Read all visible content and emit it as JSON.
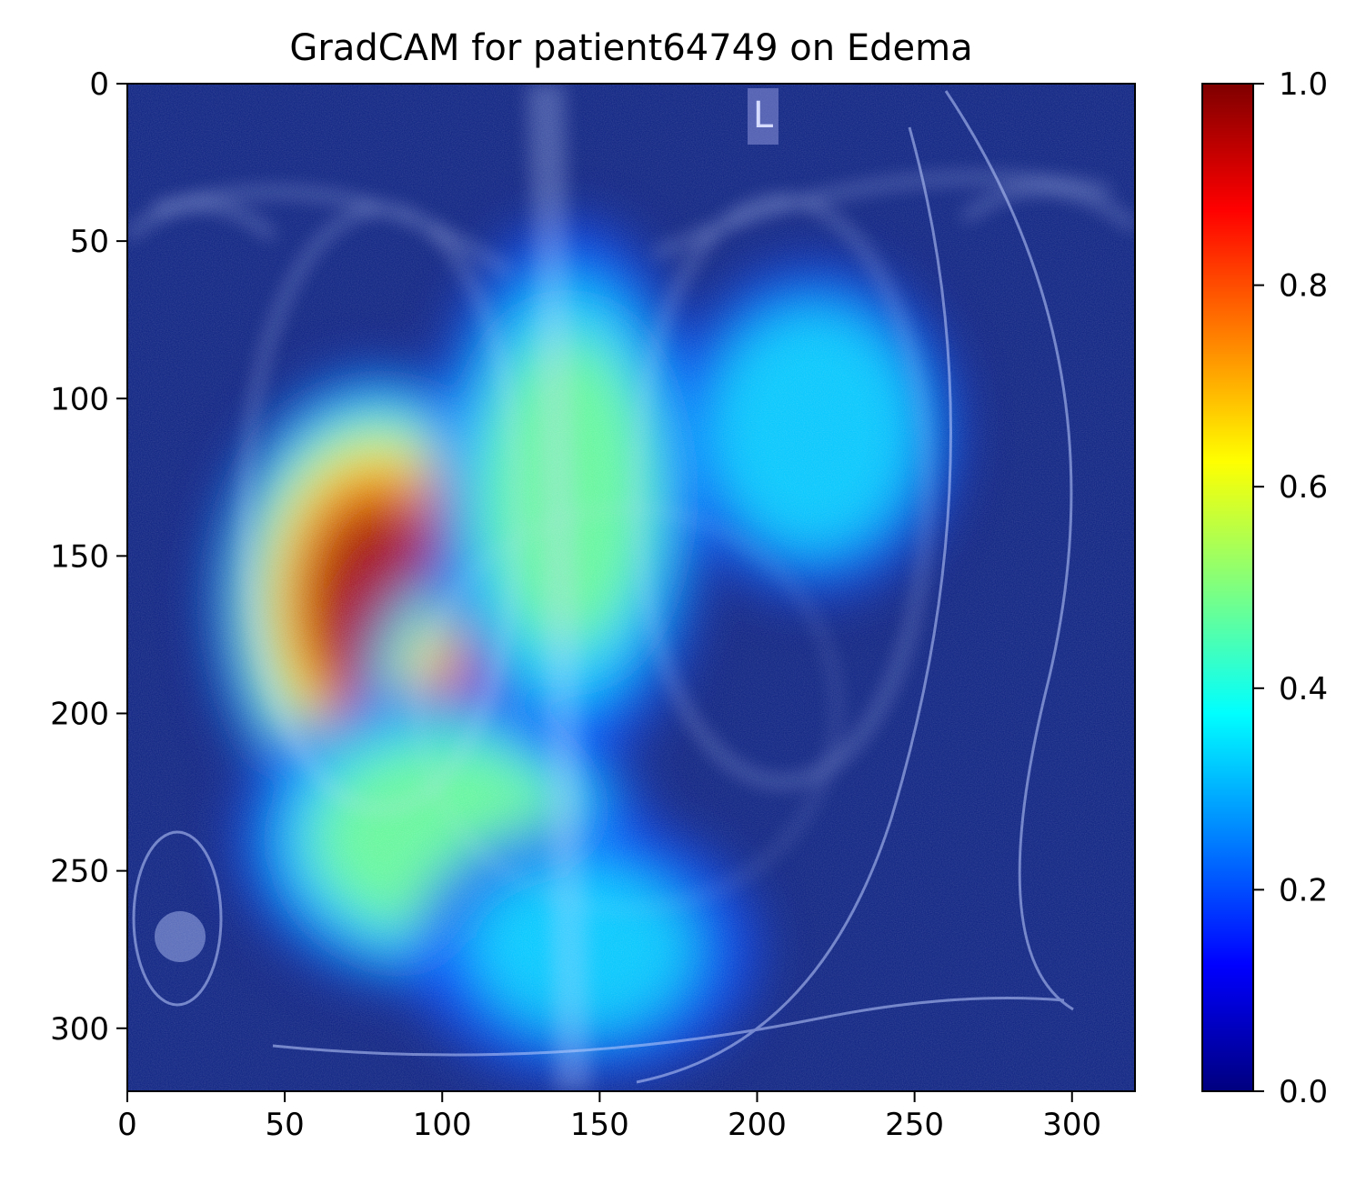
{
  "chart_data": [
    {
      "type": "heatmap",
      "title": "GradCAM for patient64749 on Edema",
      "xlabel": "",
      "ylabel": "",
      "xlim": [
        0,
        320
      ],
      "ylim": [
        320,
        0
      ],
      "x_ticks": [
        0,
        50,
        100,
        150,
        200,
        250,
        300
      ],
      "y_ticks": [
        0,
        50,
        100,
        150,
        200,
        250,
        300
      ],
      "x_tick_labels": [
        "0",
        "50",
        "100",
        "150",
        "200",
        "250",
        "300"
      ],
      "y_tick_labels": [
        "0",
        "50",
        "100",
        "150",
        "200",
        "250",
        "300"
      ],
      "y_axis_inverted": true,
      "grid": false,
      "background_image": "chest-xray",
      "image_text": "L",
      "colormap": "jet",
      "overlay_alpha": 0.5,
      "activation_hotspots": [
        {
          "x": 80,
          "y": 165,
          "intensity": 1.0,
          "sx": 30,
          "sy": 42
        },
        {
          "x": 112,
          "y": 195,
          "intensity": 0.85,
          "sx": 22,
          "sy": 26
        },
        {
          "x": 100,
          "y": 240,
          "intensity": 0.62,
          "sx": 40,
          "sy": 30
        },
        {
          "x": 140,
          "y": 130,
          "intensity": 0.55,
          "sx": 28,
          "sy": 55
        },
        {
          "x": 218,
          "y": 110,
          "intensity": 0.48,
          "sx": 30,
          "sy": 35
        },
        {
          "x": 145,
          "y": 275,
          "intensity": 0.38,
          "sx": 40,
          "sy": 30
        }
      ]
    },
    {
      "type": "colorbar",
      "colormap": "jet",
      "vmin": 0.0,
      "vmax": 1.0,
      "ticks": [
        0.0,
        0.2,
        0.4,
        0.6,
        0.8,
        1.0
      ],
      "tick_labels": [
        "0.0",
        "0.2",
        "0.4",
        "0.6",
        "0.8",
        "1.0"
      ]
    }
  ],
  "colors": {
    "axes": "#000000",
    "background": "#ffffff",
    "jet_stops": [
      "#00007f",
      "#0000ff",
      "#007fff",
      "#00ffff",
      "#7fff7f",
      "#ffff00",
      "#ff7f00",
      "#ff0000",
      "#7f0000"
    ]
  }
}
